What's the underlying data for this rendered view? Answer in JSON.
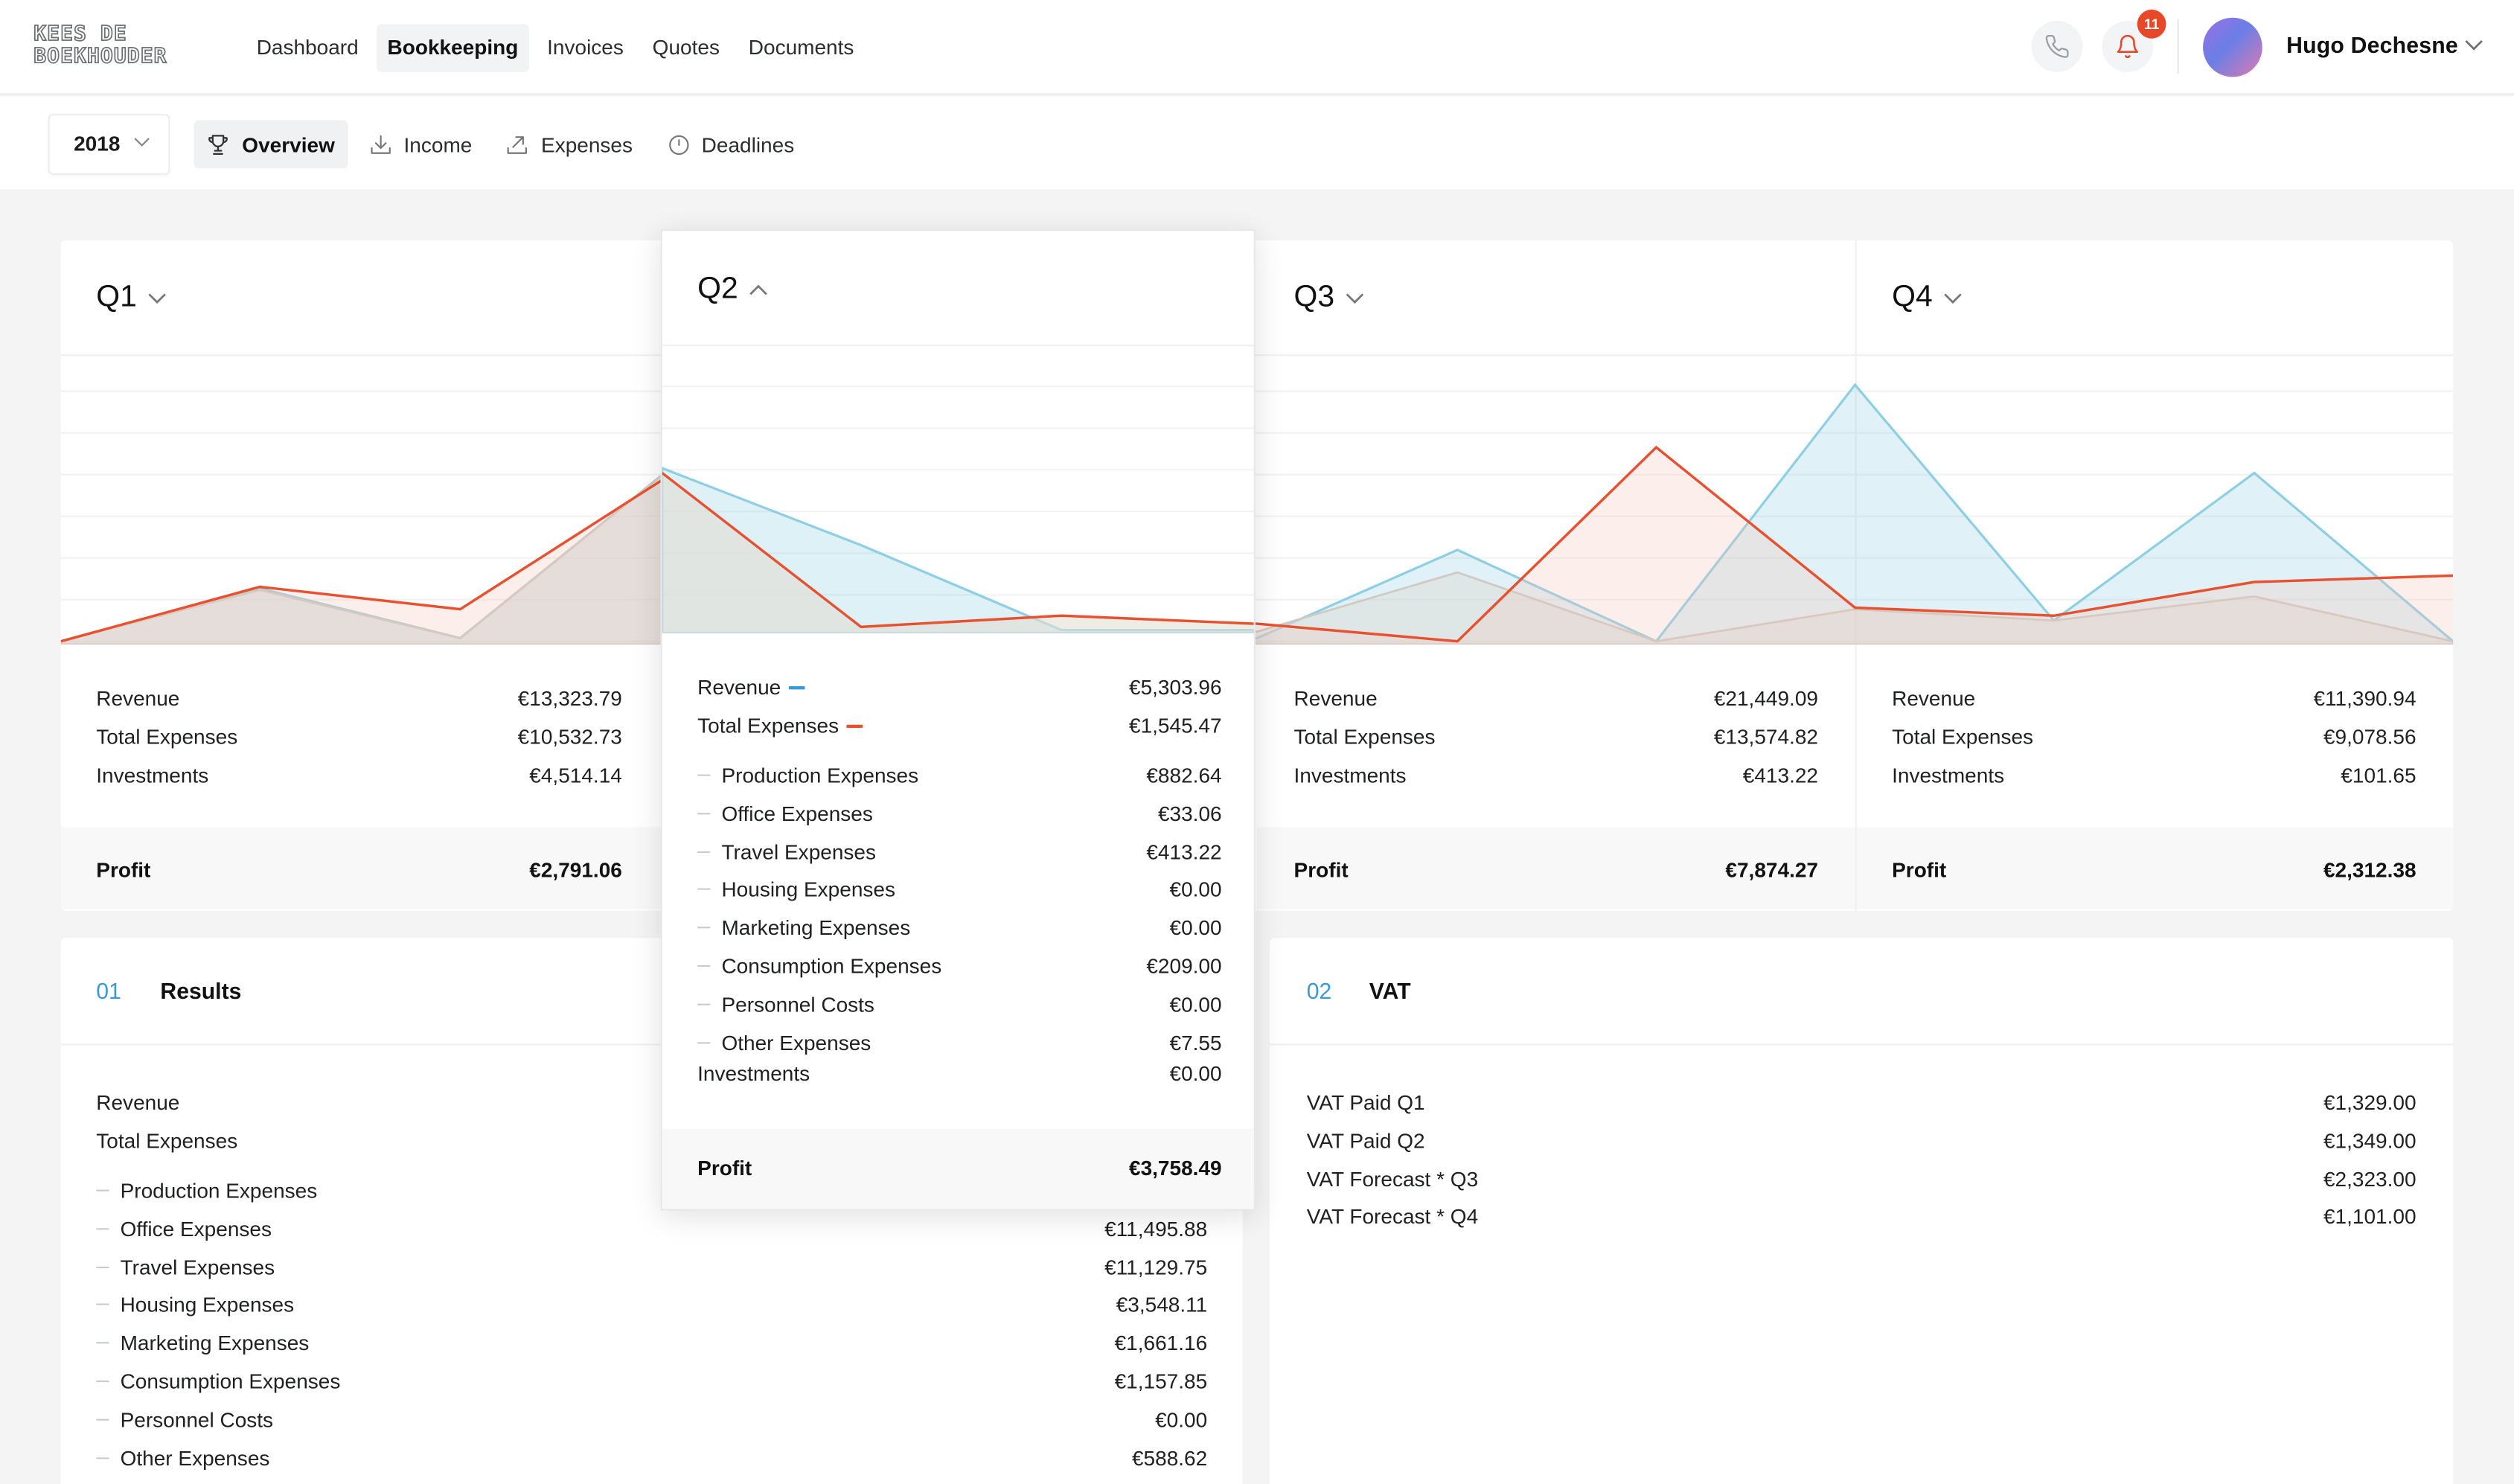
{
  "brand": {
    "logo_line1": "KEES DE",
    "logo_line2": "BOEKHOUDER"
  },
  "main_nav": [
    {
      "label": "Dashboard",
      "active": false
    },
    {
      "label": "Bookkeeping",
      "active": true
    },
    {
      "label": "Invoices",
      "active": false
    },
    {
      "label": "Quotes",
      "active": false
    },
    {
      "label": "Documents",
      "active": false
    }
  ],
  "header": {
    "notification_count": "11",
    "user_name": "Hugo Dechesne",
    "phone_icon": "phone-icon",
    "bell_icon": "bell-icon"
  },
  "year_select": {
    "value": "2018"
  },
  "sub_nav": [
    {
      "label": "Overview",
      "icon": "trophy-icon",
      "active": true
    },
    {
      "label": "Income",
      "icon": "download-tray-icon",
      "active": false
    },
    {
      "label": "Expenses",
      "icon": "upload-tray-icon",
      "active": false
    },
    {
      "label": "Deadlines",
      "icon": "clock-icon",
      "active": false
    }
  ],
  "colors": {
    "revenue": "#8ecfe3",
    "expenses": "#e8512f",
    "investments": "#cfcac3"
  },
  "quarters": {
    "q1": {
      "title": "Q1",
      "revenue_label": "Revenue",
      "revenue": "€13,323.79",
      "expenses_label": "Total Expenses",
      "expenses": "€10,532.73",
      "investments_label": "Investments",
      "investments": "€4,514.14",
      "profit_label": "Profit",
      "profit": "€2,791.06"
    },
    "q2": {
      "title": "Q2",
      "revenue_label": "Revenue",
      "revenue": "€5,303.96",
      "expenses_label": "Total Expenses",
      "expenses": "€1,545.47",
      "investments_label": "Investments",
      "investments": "€0.00",
      "profit_label": "Profit",
      "profit": "€3,758.49",
      "breakdown": [
        {
          "label": "Production Expenses",
          "value": "€882.64"
        },
        {
          "label": "Office Expenses",
          "value": "€33.06"
        },
        {
          "label": "Travel Expenses",
          "value": "€413.22"
        },
        {
          "label": "Housing Expenses",
          "value": "€0.00"
        },
        {
          "label": "Marketing Expenses",
          "value": "€0.00"
        },
        {
          "label": "Consumption Expenses",
          "value": "€209.00"
        },
        {
          "label": "Personnel Costs",
          "value": "€0.00"
        },
        {
          "label": "Other Expenses",
          "value": "€7.55"
        }
      ]
    },
    "q3": {
      "title": "Q3",
      "revenue_label": "Revenue",
      "revenue": "€21,449.09",
      "expenses_label": "Total Expenses",
      "expenses": "€13,574.82",
      "investments_label": "Investments",
      "investments": "€413.22",
      "profit_label": "Profit",
      "profit": "€7,874.27"
    },
    "q4": {
      "title": "Q4",
      "revenue_label": "Revenue",
      "revenue": "€11,390.94",
      "expenses_label": "Total Expenses",
      "expenses": "€9,078.56",
      "investments_label": "Investments",
      "investments": "€101.65",
      "profit_label": "Profit",
      "profit": "€2,312.38"
    }
  },
  "results": {
    "number": "01",
    "title": "Results",
    "revenue_label": "Revenue",
    "expenses_label": "Total Expenses",
    "rows": [
      {
        "label": "Production Expenses",
        "value": ""
      },
      {
        "label": "Office Expenses",
        "value": "€11,495.88"
      },
      {
        "label": "Travel Expenses",
        "value": "€11,129.75"
      },
      {
        "label": "Housing Expenses",
        "value": "€3,548.11"
      },
      {
        "label": "Marketing Expenses",
        "value": "€1,661.16"
      },
      {
        "label": "Consumption Expenses",
        "value": "€1,157.85"
      },
      {
        "label": "Personnel Costs",
        "value": "€0.00"
      },
      {
        "label": "Other Expenses",
        "value": "€588.62"
      }
    ]
  },
  "vat": {
    "number": "02",
    "title": "VAT",
    "rows": [
      {
        "label": "VAT Paid Q1",
        "value": "€1,329.00"
      },
      {
        "label": "VAT Paid Q2",
        "value": "€1,349.00"
      },
      {
        "label": "VAT Forecast * Q3",
        "value": "€2,323.00"
      },
      {
        "label": "VAT Forecast * Q4",
        "value": "€1,101.00"
      }
    ]
  }
}
